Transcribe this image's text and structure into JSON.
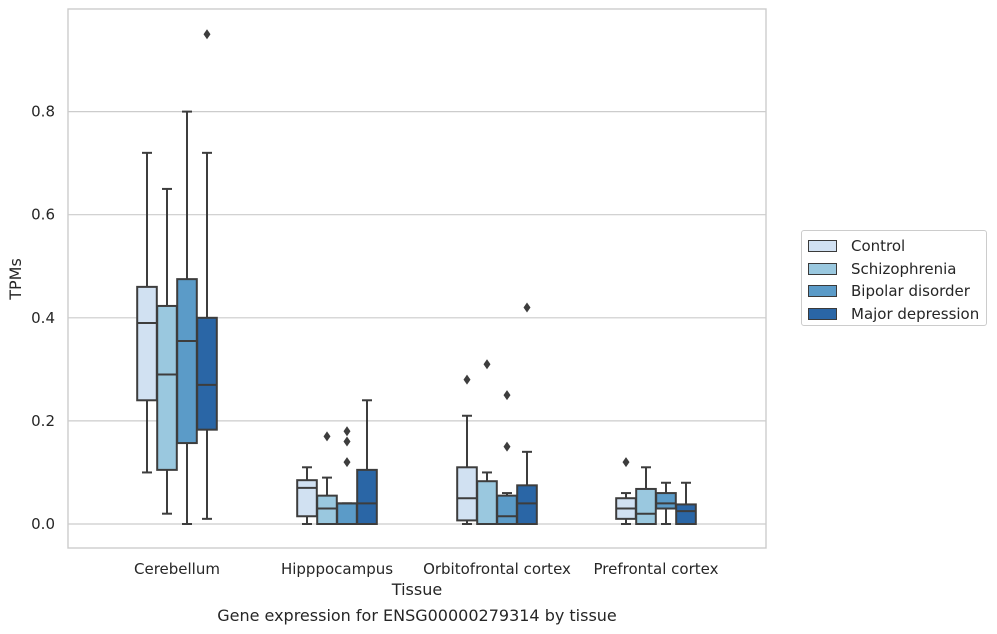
{
  "chart_data": {
    "type": "box",
    "xlabel": "Tissue",
    "ylabel": "TPMs",
    "caption": "Gene expression for ENSG00000279314 by tissue",
    "ylim": [
      -0.045,
      0.998
    ],
    "yticks": [
      0.0,
      0.2,
      0.4,
      0.6,
      0.8
    ],
    "ytick_labels": [
      "0.0",
      "0.2",
      "0.4",
      "0.6",
      "0.8"
    ],
    "grid": "horizontal",
    "legend_position": "outside-right",
    "categories": [
      "Cerebellum",
      "Hipppocampus",
      "Orbitofrontal cortex",
      "Prefrontal cortex"
    ],
    "series": [
      {
        "name": "Control",
        "color": "#d1e1f2",
        "boxes": [
          {
            "q1": 0.24,
            "median": 0.39,
            "q3": 0.46,
            "whisker_low": 0.1,
            "whisker_high": 0.72,
            "outliers": []
          },
          {
            "q1": 0.015,
            "median": 0.07,
            "q3": 0.085,
            "whisker_low": 0.0,
            "whisker_high": 0.11,
            "outliers": []
          },
          {
            "q1": 0.007,
            "median": 0.05,
            "q3": 0.11,
            "whisker_low": 0.0,
            "whisker_high": 0.21,
            "outliers": [
              0.28
            ]
          },
          {
            "q1": 0.01,
            "median": 0.03,
            "q3": 0.05,
            "whisker_low": 0.0,
            "whisker_high": 0.06,
            "outliers": [
              0.12
            ]
          }
        ]
      },
      {
        "name": "Schizophrenia",
        "color": "#9ac8df",
        "boxes": [
          {
            "q1": 0.105,
            "median": 0.29,
            "q3": 0.423,
            "whisker_low": 0.02,
            "whisker_high": 0.65,
            "outliers": []
          },
          {
            "q1": 0.0,
            "median": 0.03,
            "q3": 0.055,
            "whisker_low": 0.0,
            "whisker_high": 0.09,
            "outliers": [
              0.17
            ]
          },
          {
            "q1": 0.0,
            "median": 0.0,
            "q3": 0.083,
            "whisker_low": 0.0,
            "whisker_high": 0.1,
            "outliers": [
              0.31
            ]
          },
          {
            "q1": 0.0,
            "median": 0.02,
            "q3": 0.068,
            "whisker_low": 0.0,
            "whisker_high": 0.11,
            "outliers": []
          }
        ]
      },
      {
        "name": "Bipolar disorder",
        "color": "#5b9bc8",
        "boxes": [
          {
            "q1": 0.157,
            "median": 0.355,
            "q3": 0.475,
            "whisker_low": 0.0,
            "whisker_high": 0.8,
            "outliers": []
          },
          {
            "q1": 0.0,
            "median": 0.04,
            "q3": 0.04,
            "whisker_low": 0.0,
            "whisker_high": 0.04,
            "outliers": [
              0.12,
              0.16,
              0.18
            ]
          },
          {
            "q1": 0.0,
            "median": 0.015,
            "q3": 0.055,
            "whisker_low": 0.0,
            "whisker_high": 0.06,
            "outliers": [
              0.15,
              0.25
            ]
          },
          {
            "q1": 0.03,
            "median": 0.04,
            "q3": 0.06,
            "whisker_low": 0.0,
            "whisker_high": 0.08,
            "outliers": []
          }
        ]
      },
      {
        "name": "Major depression",
        "color": "#2a66a6",
        "boxes": [
          {
            "q1": 0.183,
            "median": 0.27,
            "q3": 0.4,
            "whisker_low": 0.01,
            "whisker_high": 0.72,
            "outliers": [
              0.95
            ]
          },
          {
            "q1": 0.0,
            "median": 0.04,
            "q3": 0.105,
            "whisker_low": 0.0,
            "whisker_high": 0.24,
            "outliers": []
          },
          {
            "q1": 0.0,
            "median": 0.04,
            "q3": 0.075,
            "whisker_low": 0.0,
            "whisker_high": 0.14,
            "outliers": [
              0.42
            ]
          },
          {
            "q1": 0.0,
            "median": 0.025,
            "q3": 0.038,
            "whisker_low": 0.0,
            "whisker_high": 0.08,
            "outliers": []
          }
        ]
      }
    ]
  }
}
